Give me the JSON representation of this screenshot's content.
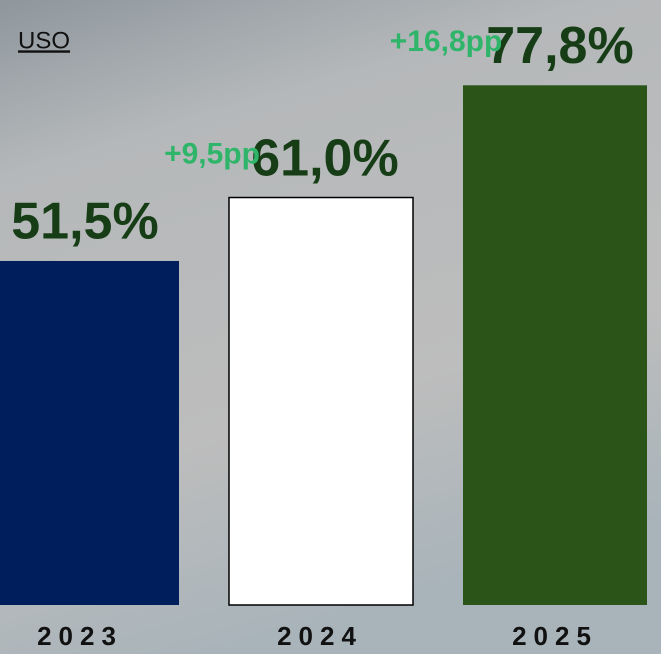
{
  "chart_data": {
    "type": "bar",
    "title": "USO",
    "categories": [
      "2023",
      "2024",
      "2025"
    ],
    "values": [
      51.5,
      61.0,
      77.8
    ],
    "value_labels": [
      "51,5%",
      "61,0%",
      "77,8%"
    ],
    "colors": [
      "#001d5c",
      "#ffffff",
      "#2b5418"
    ],
    "annotations": [
      "+9,5pp",
      "+16,8pp"
    ],
    "ylim": [
      0,
      100
    ]
  }
}
